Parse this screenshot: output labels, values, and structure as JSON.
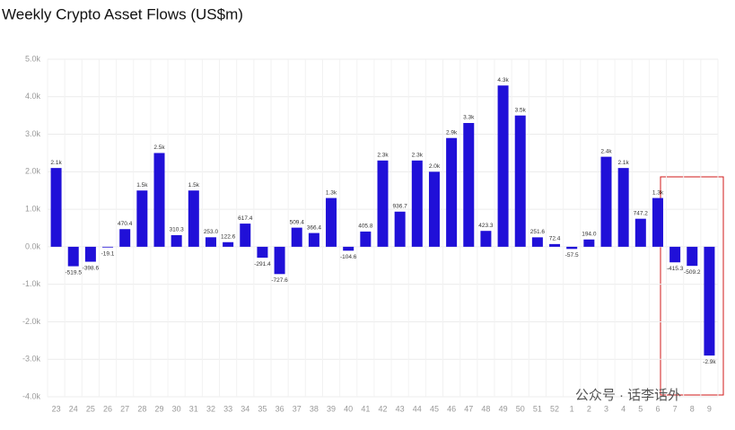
{
  "chart_data": {
    "type": "bar",
    "title": "Weekly Crypto Asset Flows (US$m)",
    "watermark": "公众号 · 话李话外",
    "categories": [
      "23",
      "24",
      "25",
      "26",
      "27",
      "28",
      "29",
      "30",
      "31",
      "32",
      "33",
      "34",
      "35",
      "36",
      "37",
      "38",
      "39",
      "40",
      "41",
      "42",
      "43",
      "44",
      "45",
      "46",
      "47",
      "48",
      "49",
      "50",
      "51",
      "52",
      "1",
      "2",
      "3",
      "4",
      "5",
      "6",
      "7",
      "8",
      "9"
    ],
    "values": [
      2100,
      -519.5,
      -398.6,
      -19.1,
      470.4,
      1500,
      2500,
      310.3,
      1500,
      253.0,
      122.6,
      617.4,
      -291.4,
      -727.6,
      509.4,
      366.4,
      1300,
      -104.6,
      405.8,
      2300,
      936.7,
      2300,
      2000,
      2900,
      3300,
      423.3,
      4300,
      3500,
      251.6,
      72.4,
      -57.5,
      194.0,
      2400,
      2100,
      747.2,
      1300,
      -415.3,
      -509.2,
      -2900
    ],
    "value_labels": [
      "2.1k",
      "-519.5",
      "-398.6",
      "-19.1",
      "470.4",
      "1.5k",
      "2.5k",
      "310.3",
      "1.5k",
      "253.0",
      "122.6",
      "617.4",
      "-291.4",
      "-727.6",
      "509.4",
      "366.4",
      "1.3k",
      "-104.6",
      "405.8",
      "2.3k",
      "936.7",
      "2.3k",
      "2.0k",
      "2.9k",
      "3.3k",
      "423.3",
      "4.3k",
      "3.5k",
      "251.6",
      "72.4",
      "-57.5",
      "194.0",
      "2.4k",
      "2.1k",
      "747.2",
      "1.3k",
      "-415.3",
      "-509.2",
      "-2.9k"
    ],
    "color": "#2010d8",
    "ylim": [
      -4000,
      5000
    ],
    "yticks": [
      {
        "value": -4000,
        "label": "-4.0k"
      },
      {
        "value": -3000,
        "label": "-3.0k"
      },
      {
        "value": -2000,
        "label": "-2.0k"
      },
      {
        "value": -1000,
        "label": "-1.0k"
      },
      {
        "value": 0,
        "label": "0.0k"
      },
      {
        "value": 1000,
        "label": "1.0k"
      },
      {
        "value": 2000,
        "label": "2.0k"
      },
      {
        "value": 3000,
        "label": "3.0k"
      },
      {
        "value": 4000,
        "label": "4.0k"
      },
      {
        "value": 5000,
        "label": "5.0k"
      }
    ],
    "grid": true
  }
}
